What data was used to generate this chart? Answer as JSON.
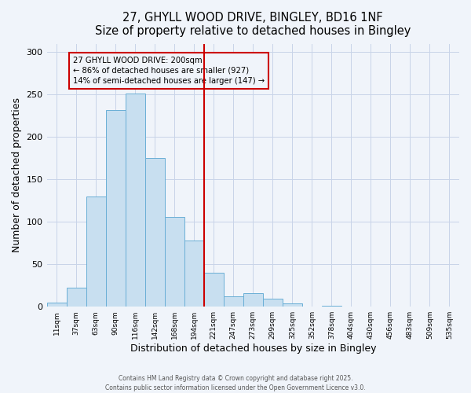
{
  "title": "27, GHYLL WOOD DRIVE, BINGLEY, BD16 1NF",
  "subtitle": "Size of property relative to detached houses in Bingley",
  "xlabel": "Distribution of detached houses by size in Bingley",
  "ylabel": "Number of detached properties",
  "bar_labels": [
    "11sqm",
    "37sqm",
    "63sqm",
    "90sqm",
    "116sqm",
    "142sqm",
    "168sqm",
    "194sqm",
    "221sqm",
    "247sqm",
    "273sqm",
    "299sqm",
    "325sqm",
    "352sqm",
    "378sqm",
    "404sqm",
    "430sqm",
    "456sqm",
    "483sqm",
    "509sqm",
    "535sqm"
  ],
  "bar_values": [
    5,
    22,
    130,
    232,
    251,
    175,
    106,
    78,
    40,
    12,
    16,
    9,
    4,
    0,
    1,
    0,
    0,
    0,
    0,
    0,
    0
  ],
  "bar_color": "#c8dff0",
  "bar_edge_color": "#6aafd6",
  "vline_color": "#cc0000",
  "annotation_text": "27 GHYLL WOOD DRIVE: 200sqm\n← 86% of detached houses are smaller (927)\n14% of semi-detached houses are larger (147) →",
  "annotation_box_edge": "#cc0000",
  "ylim": [
    0,
    310
  ],
  "yticks": [
    0,
    50,
    100,
    150,
    200,
    250,
    300
  ],
  "footnote1": "Contains HM Land Registry data © Crown copyright and database right 2025.",
  "footnote2": "Contains public sector information licensed under the Open Government Licence v3.0.",
  "bg_color": "#f0f4fa",
  "grid_color": "#c8d4e8"
}
